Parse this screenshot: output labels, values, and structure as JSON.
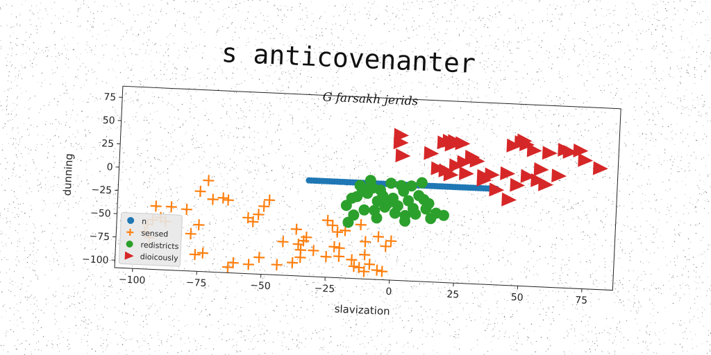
{
  "title": "s anticovenanter",
  "chart_data": {
    "type": "scatter",
    "subtitle": "G farsakh jerids",
    "xlabel": "slavization",
    "ylabel": "dunning",
    "xlim": [
      -107,
      87
    ],
    "ylim": [
      -108,
      87
    ],
    "xticks": [
      -100,
      -75,
      -50,
      -25,
      0,
      25,
      50,
      75
    ],
    "yticks": [
      75,
      50,
      25,
      0,
      -25,
      -50,
      -75,
      -100
    ],
    "grid": false,
    "legend_position": "lower-left",
    "series": [
      {
        "name": "n",
        "marker": "circle",
        "color": "#1f77b4",
        "x": [
          -33,
          -32,
          -31,
          -30,
          -29,
          -28,
          -27,
          -26,
          -25,
          -24,
          -23,
          -22,
          -21,
          -20,
          -19,
          -18,
          -17,
          -16,
          -15,
          -14,
          -13,
          -12,
          -11,
          -10,
          -9,
          -8,
          -7,
          -6,
          -5,
          -4,
          -3,
          -2,
          -1,
          0,
          1,
          2,
          3,
          4,
          5,
          6,
          7,
          8,
          9,
          10,
          11,
          12,
          13,
          14,
          15,
          16,
          17,
          18,
          19,
          20,
          21,
          22,
          23,
          24,
          25,
          26,
          27,
          28,
          29,
          30,
          31,
          32,
          33,
          34,
          35,
          36,
          37,
          38,
          39,
          40
        ],
        "y": [
          -5,
          -5,
          -5,
          -5,
          -5,
          -5,
          -5,
          -5,
          -5,
          -5,
          -5,
          -5,
          -5,
          -5,
          -5,
          -5,
          -5,
          -5,
          -5,
          -5,
          -5,
          -5,
          -5,
          -5,
          -5,
          -5,
          -5,
          -5,
          -5,
          -5,
          -5,
          -5,
          -5,
          -5,
          -5,
          -5,
          -5,
          -5,
          -5,
          -5,
          -5,
          -5,
          -5,
          -5,
          -5,
          -5,
          -5,
          -5,
          -5,
          -5,
          -5,
          -5,
          -5,
          -5,
          -5,
          -5,
          -5,
          -5,
          -5,
          -5,
          -5,
          -5,
          -5,
          -5,
          -5,
          -5,
          -5,
          -5,
          -5,
          -5,
          -5,
          -5,
          -5,
          -5
        ]
      },
      {
        "name": "sensed",
        "marker": "plus",
        "color": "#ff7f0e",
        "x": [
          -95,
          -93,
          -92,
          -86,
          -80,
          -78,
          -75,
          -72,
          -70,
          -66,
          -64,
          -56,
          -54,
          -50,
          -48,
          -37,
          -36,
          -35,
          -34,
          -25,
          -23,
          -21,
          -18,
          -12,
          -10,
          -5,
          0,
          -96,
          -94,
          -88,
          -76,
          -73,
          -63,
          -61,
          -55,
          -51,
          -44,
          -38,
          -35,
          -30,
          -25,
          -22,
          -20,
          -15,
          -14,
          -12,
          -10,
          -8,
          -5,
          -3,
          -90,
          -75,
          -52,
          -42,
          -33,
          -20,
          -10,
          -2
        ],
        "y": [
          -60,
          -55,
          -40,
          -40,
          -42,
          -68,
          -22,
          -10,
          -30,
          -28,
          -30,
          -48,
          -52,
          -35,
          -28,
          -58,
          -74,
          -80,
          -70,
          -47,
          -52,
          -59,
          -57,
          -50,
          -82,
          -62,
          -66,
          -68,
          -74,
          -56,
          -90,
          -88,
          -102,
          -97,
          -98,
          -90,
          -97,
          -94,
          -88,
          -80,
          -86,
          -75,
          -85,
          -88,
          -95,
          -96,
          -100,
          -92,
          -98,
          -99,
          -52,
          -58,
          -44,
          -72,
          -66,
          -76,
          -68,
          -72
        ]
      },
      {
        "name": "redistricts",
        "marker": "circle",
        "color": "#2ca02c",
        "x": [
          -18,
          -16,
          -14,
          -12,
          -10,
          -8,
          -6,
          -4,
          -2,
          0,
          2,
          4,
          6,
          8,
          10,
          12,
          14,
          -15,
          -11,
          -7,
          -3,
          1,
          5,
          9,
          13,
          -9,
          -1,
          7,
          -13,
          3,
          11,
          -5,
          17,
          20,
          -17,
          -6,
          5,
          15,
          -10
        ],
        "y": [
          -30,
          -22,
          -20,
          -14,
          -16,
          -10,
          -24,
          -18,
          -26,
          -20,
          -28,
          -12,
          -22,
          -30,
          -16,
          -20,
          -24,
          -40,
          -34,
          -34,
          -30,
          -36,
          -38,
          -36,
          -30,
          -2,
          -4,
          -6,
          -8,
          -6,
          -2,
          -12,
          -34,
          -36,
          -48,
          -42,
          -44,
          -40,
          -12
        ]
      },
      {
        "name": "dioicously",
        "marker": "triangle-right",
        "color": "#d62728",
        "x": [
          2,
          2,
          3,
          19,
          21,
          22,
          23,
          26,
          27,
          28,
          32,
          35,
          38,
          46,
          49,
          50,
          51,
          54,
          60,
          66,
          68,
          72,
          80,
          17,
          22,
          44,
          48,
          52,
          57,
          59,
          64,
          74,
          14,
          20,
          24,
          30,
          35,
          40,
          45,
          56
        ],
        "y": [
          48,
          40,
          26,
          42,
          44,
          40,
          44,
          42,
          22,
          10,
          24,
          8,
          10,
          42,
          46,
          48,
          44,
          38,
          36,
          40,
          38,
          40,
          22,
          14,
          8,
          12,
          0,
          10,
          18,
          2,
          12,
          30,
          30,
          12,
          18,
          28,
          4,
          -6,
          -16,
          6
        ]
      }
    ]
  }
}
